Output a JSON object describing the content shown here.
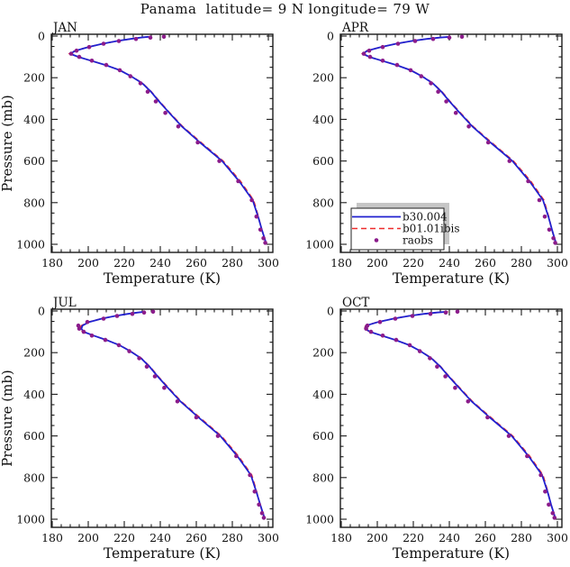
{
  "title": "Panama  latitude= 9 N longitude= 79 W",
  "colors": {
    "b30_line": "#2121cf",
    "b01_line": "#ee2b2b",
    "raobs_dot": "#8b1c8b",
    "axis": "#1a1a1a",
    "legend_shadow": "#c6c6c6",
    "legend_box": "#ffffff",
    "background": "#ffffff"
  },
  "axes": {
    "x": {
      "label": "Temperature (K)",
      "major_ticks": [
        180,
        200,
        220,
        240,
        260,
        280,
        300
      ],
      "minor_step": 5,
      "range": [
        179.5,
        302.5
      ]
    },
    "y": {
      "label": "Pressure (mb)",
      "major_ticks": [
        0,
        200,
        400,
        600,
        800,
        1000
      ],
      "minor_step": 50,
      "range": [
        -9,
        1039
      ]
    }
  },
  "legend": {
    "entries": [
      {
        "label": "b30.004",
        "swatch": "solid-line"
      },
      {
        "label": "b01.01ibis",
        "swatch": "dashed-line"
      },
      {
        "label": "raobs",
        "swatch": "dot"
      }
    ]
  },
  "chart_data": {
    "type": "line",
    "x_axis": "Temperature (K)",
    "y_axis": "Pressure (mb), inverted (0 at top)",
    "pressure_levels_mb": [
      3.5,
      7.4,
      14,
      24,
      37,
      53,
      70,
      85,
      100,
      118,
      139,
      164,
      193,
      227,
      267,
      314,
      369,
      434,
      511,
      600,
      697,
      788,
      867,
      930,
      971,
      993
    ],
    "panels": [
      {
        "id": "jan",
        "title": "JAN",
        "has_legend": false,
        "series": [
          {
            "name": "b30.004",
            "type": "line",
            "values": [
              233.5,
              229.0,
              223.5,
              216.0,
              208.0,
              200.0,
              193.0,
              190.0,
              194.5,
              201.5,
              209.5,
              217.5,
              223.8,
              230.0,
              234.8,
              239.3,
              245.0,
              252.0,
              262.0,
              274.3,
              283.8,
              291.3,
              294.3,
              296.4,
              297.9,
              298.7
            ]
          },
          {
            "name": "b01.01ibis",
            "type": "dashed-line",
            "values": [
              233.8,
              229.2,
              223.6,
              216.0,
              208.0,
              200.0,
              192.6,
              189.6,
              194.2,
              201.5,
              209.5,
              217.7,
              224.0,
              230.2,
              235.0,
              239.6,
              245.3,
              252.4,
              262.6,
              274.9,
              284.5,
              291.8,
              294.5,
              296.3,
              297.8,
              298.6
            ]
          },
          {
            "name": "raobs",
            "type": "scatter",
            "values": [
              242.0,
              234.5,
              226.5,
              217.0,
              208.5,
              200.5,
              193.5,
              190.5,
              195.0,
              202.0,
              210.0,
              217.5,
              223.4,
              229.0,
              233.0,
              237.5,
              242.8,
              250.0,
              260.8,
              272.8,
              283.3,
              290.8,
              293.4,
              295.6,
              297.3,
              298.3
            ]
          }
        ]
      },
      {
        "id": "apr",
        "title": "APR",
        "has_legend": true,
        "series": [
          {
            "name": "b30.004",
            "type": "line",
            "values": [
              240.5,
              234.5,
              227.5,
              219.0,
              210.5,
              202.0,
              194.5,
              192.0,
              195.5,
              202.5,
              210.5,
              218.5,
              224.8,
              230.8,
              235.6,
              240.1,
              245.8,
              252.8,
              262.8,
              275.0,
              284.5,
              292.0,
              295.0,
              297.0,
              298.4,
              299.2
            ]
          },
          {
            "name": "b01.01ibis",
            "type": "dashed-line",
            "values": [
              240.8,
              234.7,
              227.6,
              219.0,
              210.4,
              202.0,
              194.2,
              191.7,
              195.3,
              202.5,
              210.6,
              218.7,
              225.0,
              231.0,
              235.9,
              240.4,
              246.2,
              253.2,
              263.4,
              275.6,
              285.2,
              292.5,
              295.2,
              296.9,
              298.3,
              299.1
            ]
          },
          {
            "name": "raobs",
            "type": "scatter",
            "values": [
              247.0,
              240.0,
              231.0,
              221.0,
              211.5,
              203.0,
              195.5,
              192.5,
              196.0,
              203.0,
              211.0,
              218.5,
              224.4,
              229.8,
              233.8,
              238.3,
              243.6,
              250.8,
              261.6,
              273.4,
              283.8,
              290.0,
              293.0,
              295.5,
              297.8,
              298.8
            ]
          }
        ]
      },
      {
        "id": "jul",
        "title": "JUL",
        "has_legend": false,
        "series": [
          {
            "name": "b30.004",
            "type": "line",
            "values": [
              231.5,
              227.5,
              222.0,
              215.0,
              207.5,
              200.5,
              196.8,
              196.2,
              197.5,
              203.0,
              210.0,
              217.3,
              223.3,
              229.3,
              234.0,
              238.5,
              244.2,
              251.2,
              261.2,
              273.3,
              282.8,
              290.3,
              293.3,
              295.5,
              297.0,
              297.9
            ]
          },
          {
            "name": "b01.01ibis",
            "type": "dashed-line",
            "values": [
              231.8,
              227.6,
              222.0,
              214.8,
              207.3,
              200.2,
              196.2,
              195.3,
              197.0,
              202.8,
              210.0,
              217.5,
              223.5,
              229.5,
              234.3,
              238.8,
              244.6,
              251.6,
              261.8,
              273.9,
              283.4,
              290.8,
              293.5,
              295.4,
              296.9,
              297.8
            ]
          },
          {
            "name": "raobs",
            "type": "scatter",
            "values": [
              236.0,
              231.0,
              224.5,
              216.0,
              208.5,
              199.5,
              194.5,
              195.0,
              197.5,
              202.0,
              209.5,
              217.0,
              222.8,
              228.3,
              232.5,
              237.0,
              242.2,
              249.5,
              260.0,
              272.0,
              282.2,
              289.8,
              292.4,
              294.8,
              296.5,
              297.5
            ]
          }
        ]
      },
      {
        "id": "oct",
        "title": "OCT",
        "has_legend": false,
        "series": [
          {
            "name": "b30.004",
            "type": "line",
            "values": [
              239.0,
              233.0,
              226.0,
              217.5,
              209.0,
              200.5,
              193.8,
              193.2,
              196.0,
              202.5,
              210.0,
              217.8,
              224.0,
              230.0,
              235.0,
              239.6,
              245.4,
              252.4,
              262.4,
              274.6,
              284.0,
              291.5,
              294.5,
              296.5,
              298.0,
              298.8
            ]
          },
          {
            "name": "b01.01ibis",
            "type": "dashed-line",
            "values": [
              239.3,
              233.2,
              226.0,
              217.4,
              208.8,
              200.3,
              193.5,
              192.9,
              195.8,
              202.4,
              210.0,
              218.0,
              224.2,
              230.2,
              235.2,
              239.9,
              245.8,
              252.8,
              263.0,
              275.2,
              284.6,
              292.0,
              294.7,
              296.4,
              297.9,
              298.7
            ]
          },
          {
            "name": "raobs",
            "type": "scatter",
            "values": [
              244.5,
              238.0,
              229.5,
              219.5,
              210.0,
              201.5,
              194.5,
              193.8,
              196.5,
              203.0,
              210.5,
              218.0,
              223.6,
              229.2,
              233.2,
              237.8,
              243.2,
              250.4,
              261.2,
              273.0,
              283.2,
              290.8,
              293.2,
              295.2,
              297.4,
              298.4
            ]
          }
        ]
      }
    ]
  }
}
